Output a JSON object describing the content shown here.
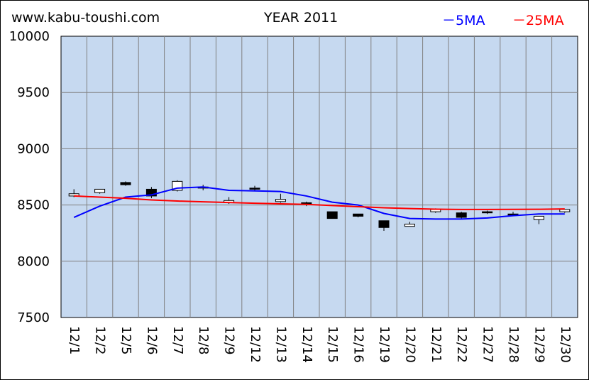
{
  "header": {
    "site": "www.kabu-toushi.com",
    "year_label": "YEAR 2011",
    "legend": [
      {
        "label": "－5MA",
        "color": "#0000ff"
      },
      {
        "label": "－25MA",
        "color": "#ff0000"
      }
    ]
  },
  "chart_data": {
    "type": "candlestick",
    "ylim": [
      7500,
      10000
    ],
    "yticks": [
      7500,
      8000,
      8500,
      9000,
      9500,
      10000
    ],
    "grid": true,
    "background_color": "#c6d9f0",
    "categories": [
      "12/1",
      "12/2",
      "12/5",
      "12/6",
      "12/7",
      "12/8",
      "12/9",
      "12/12",
      "12/13",
      "12/14",
      "12/15",
      "12/16",
      "12/19",
      "12/20",
      "12/21",
      "12/22",
      "12/27",
      "12/28",
      "12/29",
      "12/30"
    ],
    "candles": [
      {
        "open": 8580,
        "close": 8600,
        "high": 8640,
        "low": 8570
      },
      {
        "open": 8610,
        "close": 8640,
        "high": 8640,
        "low": 8600
      },
      {
        "open": 8700,
        "close": 8680,
        "high": 8710,
        "low": 8670
      },
      {
        "open": 8640,
        "close": 8580,
        "high": 8660,
        "low": 8560
      },
      {
        "open": 8630,
        "close": 8710,
        "high": 8720,
        "low": 8620
      },
      {
        "open": 8650,
        "close": 8660,
        "high": 8680,
        "low": 8630
      },
      {
        "open": 8520,
        "close": 8540,
        "high": 8570,
        "low": 8510
      },
      {
        "open": 8650,
        "close": 8640,
        "high": 8670,
        "low": 8630
      },
      {
        "open": 8530,
        "close": 8550,
        "high": 8600,
        "low": 8520
      },
      {
        "open": 8520,
        "close": 8510,
        "high": 8530,
        "low": 8490
      },
      {
        "open": 8440,
        "close": 8380,
        "high": 8440,
        "low": 8380
      },
      {
        "open": 8420,
        "close": 8400,
        "high": 8420,
        "low": 8390
      },
      {
        "open": 8360,
        "close": 8300,
        "high": 8360,
        "low": 8270
      },
      {
        "open": 8310,
        "close": 8330,
        "high": 8350,
        "low": 8310
      },
      {
        "open": 8440,
        "close": 8460,
        "high": 8470,
        "low": 8430
      },
      {
        "open": 8430,
        "close": 8390,
        "high": 8440,
        "low": 8380
      },
      {
        "open": 8440,
        "close": 8430,
        "high": 8450,
        "low": 8420
      },
      {
        "open": 8420,
        "close": 8410,
        "high": 8440,
        "low": 8400
      },
      {
        "open": 8370,
        "close": 8400,
        "high": 8400,
        "low": 8330
      },
      {
        "open": 8440,
        "close": 8460,
        "high": 8460,
        "low": 8430
      }
    ],
    "series": [
      {
        "name": "5MA",
        "color": "#0000ff",
        "values": [
          8390,
          8490,
          8570,
          8590,
          8650,
          8660,
          8630,
          8625,
          8620,
          8580,
          8525,
          8500,
          8425,
          8380,
          8375,
          8375,
          8385,
          8405,
          8420,
          8420
        ]
      },
      {
        "name": "25MA",
        "color": "#ff0000",
        "values": [
          8580,
          8570,
          8560,
          8545,
          8535,
          8528,
          8522,
          8516,
          8510,
          8505,
          8495,
          8485,
          8475,
          8468,
          8463,
          8460,
          8460,
          8461,
          8462,
          8465
        ]
      }
    ]
  }
}
